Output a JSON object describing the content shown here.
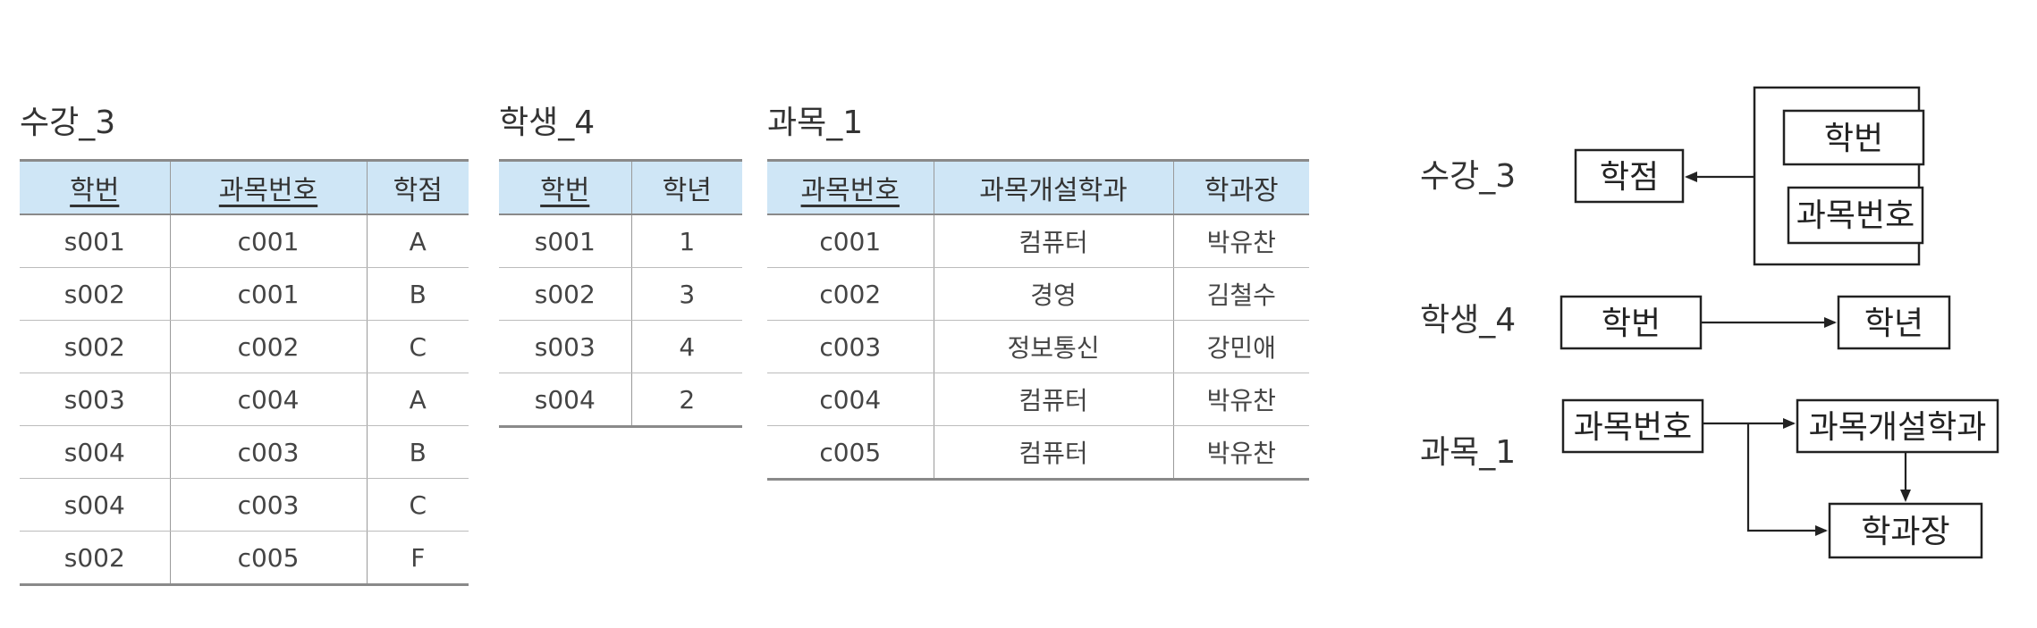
{
  "tables": [
    {
      "name": "수강_3",
      "headers": [
        "학번",
        "과목번호",
        "학점"
      ],
      "primary_key_columns": [
        0,
        1
      ],
      "rows": [
        [
          "s001",
          "c001",
          "A"
        ],
        [
          "s002",
          "c001",
          "B"
        ],
        [
          "s002",
          "c002",
          "C"
        ],
        [
          "s003",
          "c004",
          "A"
        ],
        [
          "s004",
          "c003",
          "B"
        ],
        [
          "s004",
          "c003",
          "C"
        ],
        [
          "s002",
          "c005",
          "F"
        ]
      ]
    },
    {
      "name": "학생_4",
      "headers": [
        "학번",
        "학년"
      ],
      "primary_key_columns": [
        0
      ],
      "rows": [
        [
          "s001",
          "1"
        ],
        [
          "s002",
          "3"
        ],
        [
          "s003",
          "4"
        ],
        [
          "s004",
          "2"
        ]
      ]
    },
    {
      "name": "과목_1",
      "headers": [
        "과목번호",
        "과목개설학과",
        "학과장"
      ],
      "primary_key_columns": [
        0
      ],
      "rows": [
        [
          "c001",
          "컴퓨터",
          "박유찬"
        ],
        [
          "c002",
          "경영",
          "김철수"
        ],
        [
          "c003",
          "정보통신",
          "강민애"
        ],
        [
          "c004",
          "컴퓨터",
          "박유찬"
        ],
        [
          "c005",
          "컴퓨터",
          "박유찬"
        ]
      ]
    }
  ],
  "dependency_diagram": {
    "groups": [
      {
        "label": "수강_3",
        "nodes": {
          "determinant": [
            "학번",
            "과목번호"
          ],
          "dependent": "학점"
        }
      },
      {
        "label": "학생_4",
        "nodes": {
          "determinant": "학번",
          "dependent": "학년"
        }
      },
      {
        "label": "과목_1",
        "nodes": {
          "determinant": "과목번호",
          "dependents": [
            "과목개설학과",
            "학과장"
          ]
        }
      }
    ]
  }
}
